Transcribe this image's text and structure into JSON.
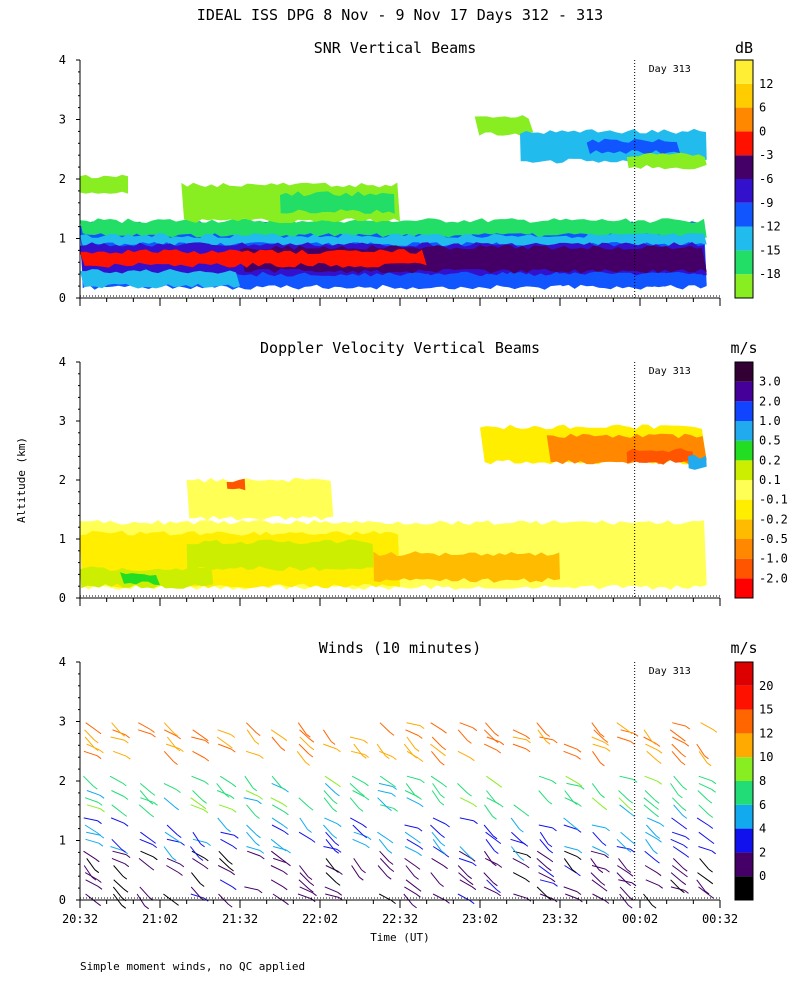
{
  "figure_title": "IDEAL ISS DPG   8 Nov -  9 Nov 17 Days 312 - 313",
  "footer_note": "Simple moment winds, no QC applied",
  "shared": {
    "ylabel": "Altitude (km)",
    "xlabel": "Time (UT)",
    "ylim": [
      0,
      4
    ],
    "yticks": [
      0,
      1,
      2,
      3,
      4
    ],
    "xlim_minutes": [
      0,
      240
    ],
    "xtick_labels": [
      "20:32",
      "21:02",
      "21:32",
      "22:02",
      "22:32",
      "23:02",
      "23:32",
      "00:02",
      "00:32"
    ],
    "day_marker_label": "Day 313",
    "day_marker_minute": 208
  },
  "chart_data": [
    {
      "type": "heatmap",
      "title": "SNR Vertical Beams",
      "colorbar_unit": "dB",
      "colorbar_labels": [
        "-18",
        "-15",
        "-12",
        "-9",
        "-6",
        "-3",
        "0",
        "6",
        "12"
      ],
      "colorbar_colors": [
        "#88ee22",
        "#22dd66",
        "#22bbee",
        "#1155ff",
        "#3311cc",
        "#440066",
        "#ff1100",
        "#ff8800",
        "#ffcc00",
        "#ffee33"
      ],
      "layers": [
        {
          "t0": 0,
          "t1": 235,
          "zlo": 0.18,
          "zhi": 1.25,
          "color": "#1155ff"
        },
        {
          "t0": 0,
          "t1": 235,
          "zlo": 1.05,
          "zhi": 1.3,
          "color": "#22dd66"
        },
        {
          "t0": 0,
          "t1": 235,
          "zlo": 0.9,
          "zhi": 1.05,
          "color": "#22bbee"
        },
        {
          "t0": 0,
          "t1": 235,
          "zlo": 0.4,
          "zhi": 0.9,
          "color": "#3311cc"
        },
        {
          "t0": 60,
          "t1": 235,
          "zlo": 0.45,
          "zhi": 0.85,
          "color": "#440066"
        },
        {
          "t0": 0,
          "t1": 60,
          "zlo": 0.2,
          "zhi": 0.45,
          "color": "#22bbee"
        },
        {
          "t0": 0,
          "t1": 130,
          "zlo": 0.55,
          "zhi": 0.78,
          "color": "#ff1100"
        },
        {
          "t0": 130,
          "t1": 235,
          "zlo": 0.22,
          "zhi": 0.4,
          "color": "#1155ff"
        },
        {
          "t0": 0,
          "t1": 18,
          "zlo": 1.75,
          "zhi": 2.05,
          "color": "#88ee22"
        },
        {
          "t0": 38,
          "t1": 120,
          "zlo": 1.3,
          "zhi": 1.9,
          "color": "#88ee22"
        },
        {
          "t0": 75,
          "t1": 118,
          "zlo": 1.45,
          "zhi": 1.75,
          "color": "#22dd66"
        },
        {
          "t0": 148,
          "t1": 170,
          "zlo": 2.75,
          "zhi": 3.05,
          "color": "#88ee22"
        },
        {
          "t0": 165,
          "t1": 235,
          "zlo": 2.3,
          "zhi": 2.8,
          "color": "#22bbee"
        },
        {
          "t0": 190,
          "t1": 225,
          "zlo": 2.45,
          "zhi": 2.65,
          "color": "#1155ff"
        },
        {
          "t0": 205,
          "t1": 235,
          "zlo": 2.2,
          "zhi": 2.4,
          "color": "#88ee22"
        }
      ]
    },
    {
      "type": "heatmap",
      "title": "Doppler Velocity Vertical Beams",
      "colorbar_unit": "m/s",
      "colorbar_labels": [
        "-2.0",
        "-1.0",
        "-0.5",
        "-0.2",
        "-0.1",
        "0.1",
        "0.2",
        "0.5",
        "1.0",
        "2.0",
        "3.0"
      ],
      "colorbar_colors": [
        "#ff0000",
        "#ff5500",
        "#ff8800",
        "#ffbb00",
        "#ffee00",
        "#ffff55",
        "#ccee00",
        "#22dd22",
        "#22aaee",
        "#1144ff",
        "#440099",
        "#330033"
      ],
      "layers": [
        {
          "t0": 0,
          "t1": 235,
          "zlo": 0.18,
          "zhi": 1.28,
          "color": "#ffff55"
        },
        {
          "t0": 0,
          "t1": 120,
          "zlo": 0.2,
          "zhi": 1.1,
          "color": "#ffee00"
        },
        {
          "t0": 0,
          "t1": 50,
          "zlo": 0.2,
          "zhi": 0.5,
          "color": "#ccee00"
        },
        {
          "t0": 40,
          "t1": 110,
          "zlo": 0.5,
          "zhi": 0.95,
          "color": "#ccee00"
        },
        {
          "t0": 15,
          "t1": 30,
          "zlo": 0.25,
          "zhi": 0.4,
          "color": "#22dd22"
        },
        {
          "t0": 110,
          "t1": 180,
          "zlo": 0.3,
          "zhi": 0.75,
          "color": "#ffbb00"
        },
        {
          "t0": 40,
          "t1": 95,
          "zlo": 1.35,
          "zhi": 2.0,
          "color": "#ffff55"
        },
        {
          "t0": 55,
          "t1": 62,
          "zlo": 1.85,
          "zhi": 2.0,
          "color": "#ff5500"
        },
        {
          "t0": 150,
          "t1": 235,
          "zlo": 2.3,
          "zhi": 2.9,
          "color": "#ffee00"
        },
        {
          "t0": 175,
          "t1": 235,
          "zlo": 2.3,
          "zhi": 2.75,
          "color": "#ff8800"
        },
        {
          "t0": 205,
          "t1": 230,
          "zlo": 2.3,
          "zhi": 2.5,
          "color": "#ff5500"
        },
        {
          "t0": 228,
          "t1": 235,
          "zlo": 2.2,
          "zhi": 2.4,
          "color": "#22aaee"
        }
      ]
    },
    {
      "type": "barbs",
      "title": "Winds (10 minutes)",
      "colorbar_unit": "m/s",
      "colorbar_labels": [
        "0",
        "2",
        "4",
        "6",
        "8",
        "10",
        "12",
        "15",
        "20"
      ],
      "colorbar_colors": [
        "#000000",
        "#440066",
        "#1111ee",
        "#11aaee",
        "#22dd77",
        "#88ee22",
        "#ffaa00",
        "#ff6600",
        "#ff1100",
        "#dd0000"
      ],
      "bands": [
        {
          "zlo": 0.1,
          "zhi": 0.9,
          "speed": 3
        },
        {
          "zlo": 0.9,
          "zhi": 1.5,
          "speed": 6
        },
        {
          "zlo": 1.6,
          "zhi": 2.2,
          "speed": 9
        },
        {
          "zlo": 2.5,
          "zhi": 3.1,
          "speed": 15
        }
      ]
    }
  ]
}
